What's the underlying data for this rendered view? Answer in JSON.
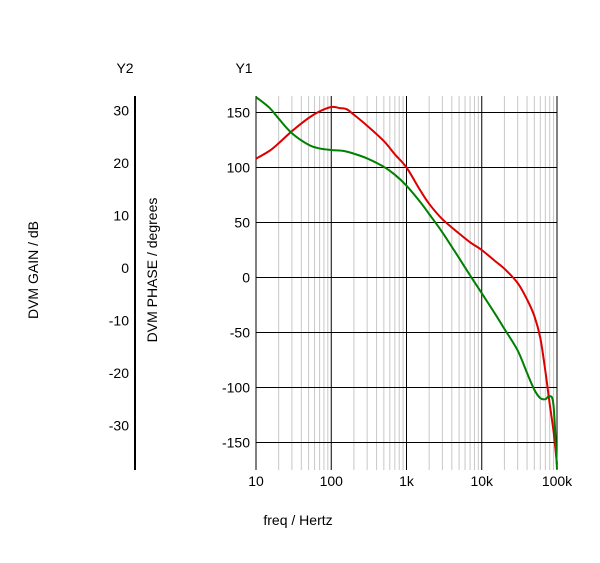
{
  "chart_data": {
    "type": "line",
    "y1_axis_tag": "Y1",
    "y2_axis_tag": "Y2",
    "xlabel": "freq / Hertz",
    "y1label": "DVM PHASE / degrees",
    "y2label": "DVM GAIN / dB",
    "x_scale": "log",
    "xlim": [
      10,
      100000
    ],
    "x_ticks": [
      10,
      100,
      1000,
      10000,
      100000
    ],
    "x_tick_labels": [
      "10",
      "100",
      "1k",
      "10k",
      "100k"
    ],
    "y1lim": [
      -175,
      165
    ],
    "y1_ticks": [
      150,
      100,
      50,
      0,
      -50,
      -100,
      -150
    ],
    "y1_tick_labels": [
      "150",
      "100",
      "50",
      "0",
      "-50",
      "-100",
      "-150"
    ],
    "y2lim": [
      -38.5,
      32.8
    ],
    "y2_ticks": [
      30,
      20,
      10,
      0,
      -10,
      -20,
      -30
    ],
    "y2_tick_labels": [
      "30",
      "20",
      "10",
      "0",
      "-10",
      "-20",
      "-30"
    ],
    "grid": true,
    "colors": {
      "phase": "#dd0000",
      "gain": "#008000"
    },
    "series": [
      {
        "axis": "y1",
        "color": "#dd0000",
        "x": [
          10,
          15,
          20,
          30,
          50,
          70,
          100,
          130,
          160,
          200,
          300,
          500,
          700,
          1000,
          1500,
          2000,
          3000,
          5000,
          7000,
          10000,
          15000,
          20000,
          30000,
          40000,
          50000,
          60000,
          70000,
          80000,
          90000,
          100000
        ],
        "values": [
          108,
          115,
          122,
          133,
          145,
          151,
          155,
          154,
          153,
          148,
          138,
          124,
          112,
          100,
          80,
          67,
          53,
          40,
          32,
          25,
          15,
          8,
          -5,
          -20,
          -35,
          -55,
          -85,
          -115,
          -140,
          -170
        ]
      },
      {
        "axis": "y2",
        "color": "#008000",
        "x": [
          10,
          15,
          20,
          30,
          50,
          70,
          100,
          150,
          200,
          300,
          500,
          700,
          1000,
          1500,
          2000,
          3000,
          5000,
          7000,
          10000,
          15000,
          20000,
          30000,
          40000,
          50000,
          60000,
          70000,
          80000,
          90000,
          100000
        ],
        "values": [
          32.6,
          30.6,
          28.5,
          25.7,
          23.5,
          22.8,
          22.5,
          22.3,
          21.8,
          20.9,
          19.3,
          17.8,
          15.7,
          12.7,
          10.3,
          6.8,
          1.9,
          -1.4,
          -4.8,
          -8.7,
          -11.6,
          -15.7,
          -20.0,
          -23.2,
          -24.8,
          -25.0,
          -24.4,
          -26.3,
          -38.3
        ]
      }
    ]
  }
}
